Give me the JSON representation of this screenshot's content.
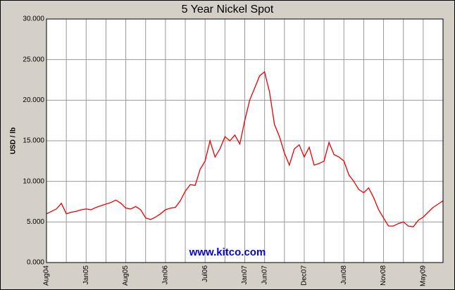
{
  "chart_data": {
    "type": "line",
    "title": "5 Year Nickel Spot",
    "y_label": "USD / lb",
    "annotation": "www.kitco.com",
    "color": "#ee0000",
    "categories": [
      "Aug04",
      null,
      null,
      null,
      null,
      null,
      null,
      null,
      "Jan05",
      null,
      null,
      null,
      null,
      null,
      null,
      null,
      "Aug05",
      null,
      null,
      null,
      null,
      null,
      null,
      null,
      "Jan06",
      null,
      null,
      null,
      null,
      null,
      null,
      null,
      "Jul06",
      null,
      null,
      null,
      null,
      null,
      null,
      null,
      "Jan07",
      null,
      null,
      null,
      "Jun07",
      null,
      null,
      null,
      null,
      null,
      null,
      null,
      "Dec07",
      null,
      null,
      null,
      null,
      null,
      null,
      null,
      "Jun08",
      null,
      null,
      null,
      null,
      null,
      null,
      null,
      "Nov08",
      null,
      null,
      null,
      null,
      null,
      null,
      null,
      "May09",
      null,
      null,
      null,
      null
    ],
    "values": [
      6.0,
      6.3,
      6.6,
      7.3,
      6.0,
      6.2,
      6.3,
      6.5,
      6.6,
      6.5,
      6.8,
      7.0,
      7.2,
      7.4,
      7.7,
      7.3,
      6.7,
      6.6,
      6.9,
      6.5,
      5.5,
      5.3,
      5.6,
      6.0,
      6.5,
      6.7,
      6.8,
      7.6,
      8.8,
      9.6,
      9.5,
      11.5,
      12.5,
      15.0,
      13.0,
      14.0,
      15.5,
      15.0,
      15.7,
      14.6,
      17.5,
      20.0,
      21.5,
      23.0,
      23.5,
      21.0,
      17.0,
      15.5,
      13.5,
      12.0,
      14.0,
      14.5,
      13.0,
      14.2,
      12.0,
      12.2,
      12.5,
      14.8,
      13.3,
      13.0,
      12.5,
      10.8,
      10.0,
      9.0,
      8.6,
      9.2,
      8.0,
      6.5,
      5.5,
      4.5,
      4.5,
      4.8,
      5.0,
      4.5,
      4.4,
      5.2,
      5.6,
      6.2,
      6.8,
      7.2,
      7.6
    ],
    "ylim": [
      0,
      30
    ],
    "yticks": [
      {
        "value": 0,
        "label": "0.000"
      },
      {
        "value": 5,
        "label": "5.000"
      },
      {
        "value": 10,
        "label": "10.000"
      },
      {
        "value": 15,
        "label": "15.000"
      },
      {
        "value": 20,
        "label": "20.000"
      },
      {
        "value": 25,
        "label": "25.000"
      },
      {
        "value": 30,
        "label": "30.000"
      }
    ],
    "grid": true
  }
}
